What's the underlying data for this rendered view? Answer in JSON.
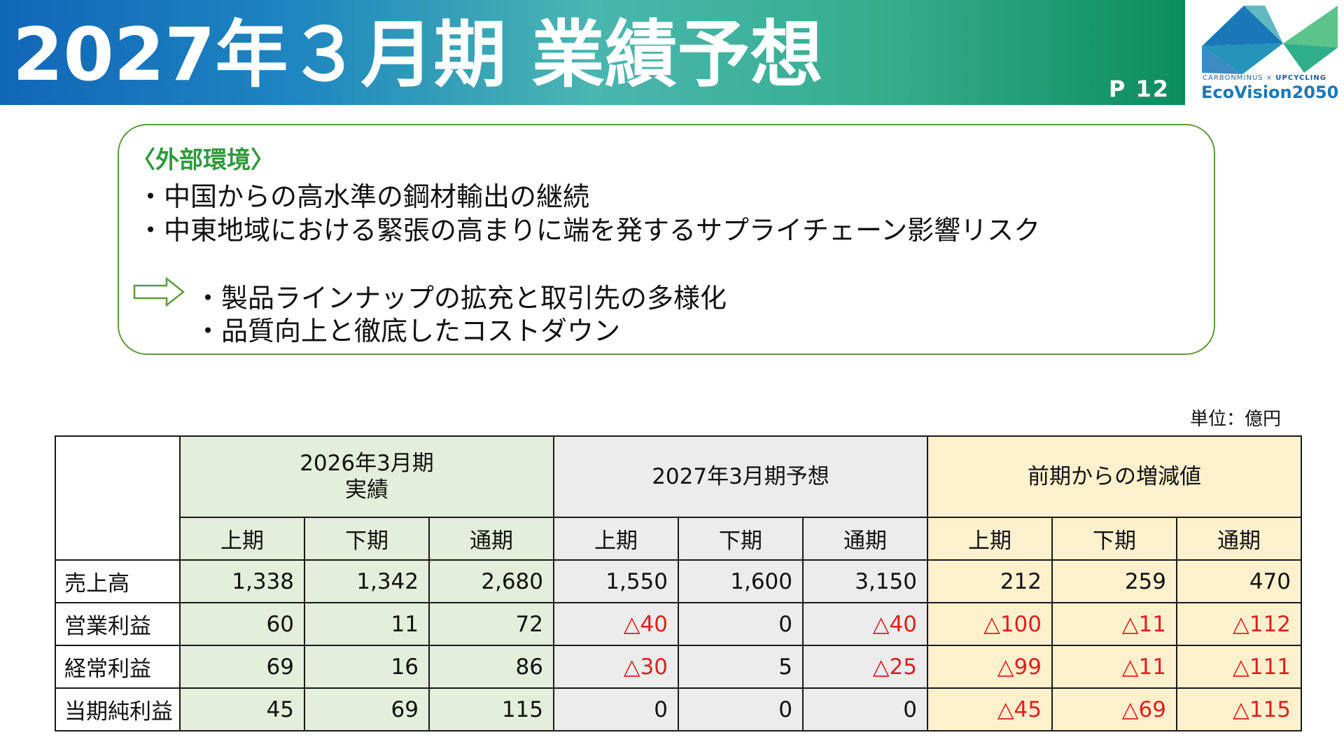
{
  "header": {
    "title": "2027年３月期 業績予想",
    "page": "P 12"
  },
  "logo": {
    "sub_left": "CARBONMINUS",
    "sub_sep": " × ",
    "sub_right": "UPCYCLING",
    "main": "EcoVision2050",
    "colors": [
      "#1a78b8",
      "#2fae8a",
      "#5cc38b"
    ]
  },
  "environment": {
    "heading": "〈外部環境〉",
    "items": [
      "・中国からの高水準の鋼材輸出の継続",
      "・中東地域における緊張の高まりに端を発するサプライチェーン影響リスク"
    ],
    "actions": [
      "・製品ラインナップの拡充と取引先の多様化",
      "・品質向上と徹底したコストダウン"
    ],
    "arrow_icon": "right-arrow-icon"
  },
  "unit": "単位：億円",
  "table": {
    "groups": [
      {
        "line1": "2026年3月期",
        "line2": "実績",
        "color": "#e3efda"
      },
      {
        "line1": "2027年3月期予想",
        "line2": "",
        "color": "#ececec"
      },
      {
        "line1": "前期からの増減値",
        "line2": "",
        "color": "#fdf1cd"
      }
    ],
    "subheaders": [
      "上期",
      "下期",
      "通期",
      "上期",
      "下期",
      "通期",
      "上期",
      "下期",
      "通期"
    ],
    "rows": [
      {
        "label": "売上高",
        "values": [
          "1,338",
          "1,342",
          "2,680",
          "1,550",
          "1,600",
          "3,150",
          "212",
          "259",
          "470"
        ]
      },
      {
        "label": "営業利益",
        "values": [
          "60",
          "11",
          "72",
          "△40",
          "0",
          "△40",
          "△100",
          "△11",
          "△112"
        ]
      },
      {
        "label": "経常利益",
        "values": [
          "69",
          "16",
          "86",
          "△30",
          "5",
          "△25",
          "△99",
          "△11",
          "△111"
        ]
      },
      {
        "label": "当期純利益",
        "values": [
          "45",
          "69",
          "115",
          "0",
          "0",
          "0",
          "△45",
          "△69",
          "△115"
        ]
      }
    ],
    "negative_color": "#e21e1e"
  }
}
